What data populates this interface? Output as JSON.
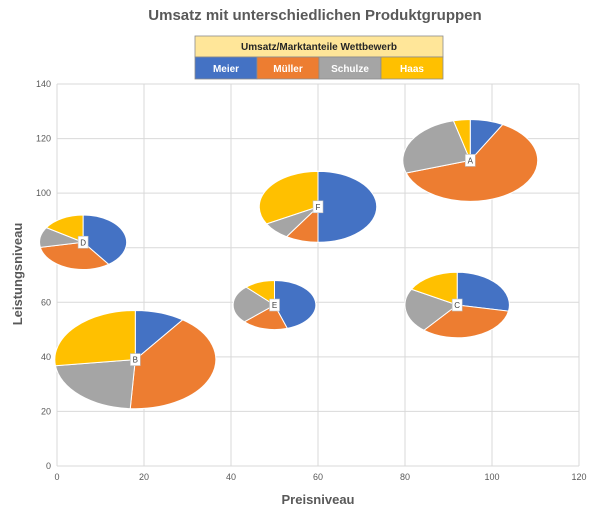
{
  "chart_data": {
    "type": "scatter",
    "subtype": "bubble-pie",
    "title": "Umsatz mit unterschiedlichen Produktgruppen",
    "xlabel": "Preisniveau",
    "ylabel": "Leistungsniveau",
    "xlim": [
      0,
      120
    ],
    "ylim": [
      0,
      140
    ],
    "xticks": [
      "0",
      "20",
      "40",
      "60",
      "80",
      "100",
      "120"
    ],
    "yticks": [
      "0",
      "20",
      "40",
      "60",
      "80",
      "100",
      "120",
      "140"
    ],
    "grid": true,
    "legend": {
      "title": "Umsatz/Marktanteile Wettbewerb",
      "placement": "top-center",
      "title_color": "#FFE699"
    },
    "series": [
      {
        "name": "Meier",
        "color": "#4472C4"
      },
      {
        "name": "Müller",
        "color": "#ED7D31"
      },
      {
        "name": "Schulze",
        "color": "#A5A5A5"
      },
      {
        "name": "Haas",
        "color": "#FFC000"
      }
    ],
    "points": [
      {
        "label": "A",
        "x": 95,
        "y": 112,
        "rx": 15.5,
        "ry": 15,
        "shares": [
          8,
          62,
          26,
          4
        ]
      },
      {
        "label": "B",
        "x": 18,
        "y": 39,
        "rx": 18.5,
        "ry": 18,
        "shares": [
          10,
          41,
          22,
          27
        ]
      },
      {
        "label": "C",
        "x": 92,
        "y": 59,
        "rx": 12,
        "ry": 12,
        "shares": [
          28,
          33,
          22,
          17
        ]
      },
      {
        "label": "D",
        "x": 6,
        "y": 82,
        "rx": 10,
        "ry": 10,
        "shares": [
          40,
          32,
          12,
          16
        ]
      },
      {
        "label": "E",
        "x": 50,
        "y": 59,
        "rx": 9.5,
        "ry": 9,
        "shares": [
          45,
          18,
          25,
          12
        ]
      },
      {
        "label": "F",
        "x": 60,
        "y": 95,
        "rx": 13.5,
        "ry": 13,
        "shares": [
          50,
          9,
          8,
          33
        ]
      }
    ]
  }
}
